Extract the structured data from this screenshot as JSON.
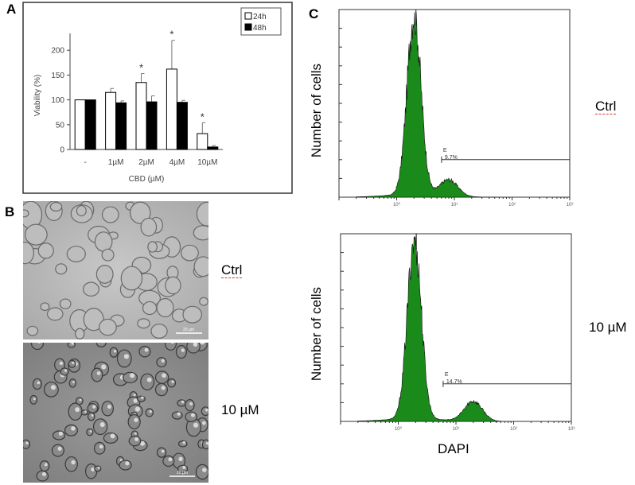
{
  "panels": {
    "a": {
      "letter": "A"
    },
    "b": {
      "letter": "B",
      "labels": [
        "Ctrl",
        "10 µM"
      ],
      "scale_bar": "20 µm"
    },
    "c": {
      "letter": "C",
      "labels": [
        "Ctrl",
        "10 µM"
      ],
      "ylabel": "Number of cells",
      "xlabel": "DAPI"
    }
  },
  "chart_data": [
    {
      "type": "bar",
      "ylabel": "Viability (%)",
      "xlabel": "CBD (µM)",
      "categories": [
        "-",
        "1µM",
        "2µM",
        "4µM",
        "10µM"
      ],
      "ylim": [
        0,
        250
      ],
      "yticks": [
        0,
        50,
        100,
        150,
        200
      ],
      "legend": "top-right",
      "series": [
        {
          "name": "24h",
          "color": "#ffffff",
          "values": [
            100,
            115,
            135,
            162,
            32
          ],
          "errors": [
            0,
            8,
            18,
            58,
            22
          ]
        },
        {
          "name": "48h",
          "color": "#000000",
          "values": [
            100,
            94,
            96,
            95,
            5
          ],
          "errors": [
            0,
            4,
            12,
            4,
            3
          ]
        }
      ],
      "annotations": [
        {
          "category": "2µM",
          "series": "24h",
          "text": "*"
        },
        {
          "category": "4µM",
          "series": "24h",
          "text": "*"
        },
        {
          "category": "10µM",
          "series": "24h",
          "text": "*"
        }
      ]
    },
    {
      "type": "area",
      "ylabel": "Number of cells",
      "xscale": "log",
      "xlim": [
        0.1,
        1000
      ],
      "xticks": [
        "10⁰",
        "10¹",
        "10²",
        "10³"
      ],
      "color": "#1a8a1a",
      "gate": {
        "label": "E",
        "percent": "9.7%",
        "x_range": [
          6,
          1000
        ]
      },
      "histogram": {
        "mode": 2.0,
        "peak": 1.0,
        "shoulder_x": 8,
        "shoulder_height": 0.09
      }
    },
    {
      "type": "area",
      "ylabel": "Number of cells",
      "xlabel": "DAPI",
      "xscale": "log",
      "xlim": [
        0.1,
        1000
      ],
      "xticks": [
        "10⁰",
        "10¹",
        "10²",
        "10³"
      ],
      "color": "#1a8a1a",
      "gate": {
        "label": "E",
        "percent": "14.7%",
        "x_range": [
          6,
          1000
        ]
      },
      "histogram": {
        "mode": 1.9,
        "peak": 1.0,
        "shoulder_x": 20,
        "shoulder_height": 0.11
      }
    }
  ]
}
